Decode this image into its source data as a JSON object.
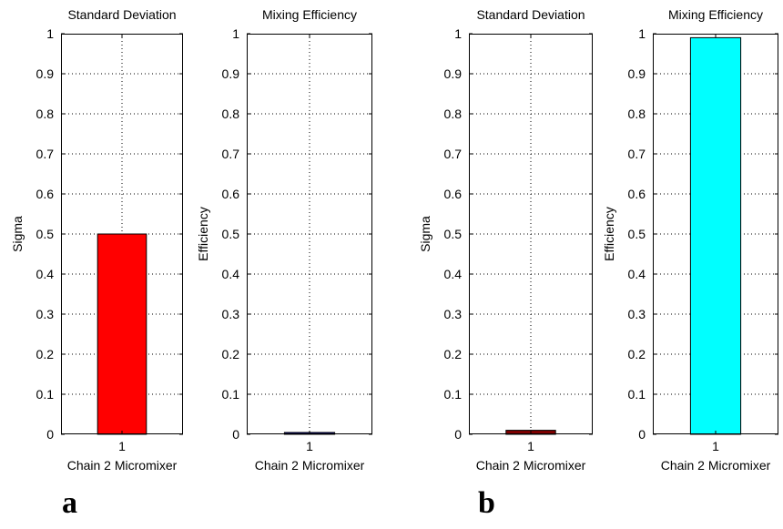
{
  "chart_data": [
    {
      "type": "bar",
      "title": "Standard Deviation",
      "xlabel": "Chain 2 Micromixer",
      "ylabel": "Sigma",
      "categories": [
        "1"
      ],
      "values": [
        0.5
      ],
      "ylim": [
        0,
        1
      ],
      "yticks": [
        "0",
        "0.1",
        "0.2",
        "0.3",
        "0.4",
        "0.5",
        "0.6",
        "0.7",
        "0.8",
        "0.9",
        "1"
      ],
      "grid": true,
      "bar_color": "#ff0000"
    },
    {
      "type": "bar",
      "title": "Mixing Efficiency",
      "xlabel": "Chain 2 Micromixer",
      "ylabel": "Efficiency",
      "categories": [
        "1"
      ],
      "values": [
        0.003
      ],
      "ylim": [
        0,
        1
      ],
      "yticks": [
        "0",
        "0.1",
        "0.2",
        "0.3",
        "0.4",
        "0.5",
        "0.6",
        "0.7",
        "0.8",
        "0.9",
        "1"
      ],
      "grid": true,
      "bar_color": "#00007f"
    },
    {
      "type": "bar",
      "title": "Standard Deviation",
      "xlabel": "Chain 2 Micromixer",
      "ylabel": "Sigma",
      "categories": [
        "1"
      ],
      "values": [
        0.01
      ],
      "ylim": [
        0,
        1
      ],
      "yticks": [
        "0",
        "0.1",
        "0.2",
        "0.3",
        "0.4",
        "0.5",
        "0.6",
        "0.7",
        "0.8",
        "0.9",
        "1"
      ],
      "grid": true,
      "bar_color": "#800000"
    },
    {
      "type": "bar",
      "title": "Mixing Efficiency",
      "xlabel": "Chain 2 Micromixer",
      "ylabel": "Efficiency",
      "categories": [
        "1"
      ],
      "values": [
        0.99
      ],
      "ylim": [
        0,
        1
      ],
      "yticks": [
        "0",
        "0.1",
        "0.2",
        "0.3",
        "0.4",
        "0.5",
        "0.6",
        "0.7",
        "0.8",
        "0.9",
        "1"
      ],
      "grid": true,
      "bar_color": "#00ffff"
    }
  ],
  "panel_labels": [
    "a",
    "b"
  ]
}
